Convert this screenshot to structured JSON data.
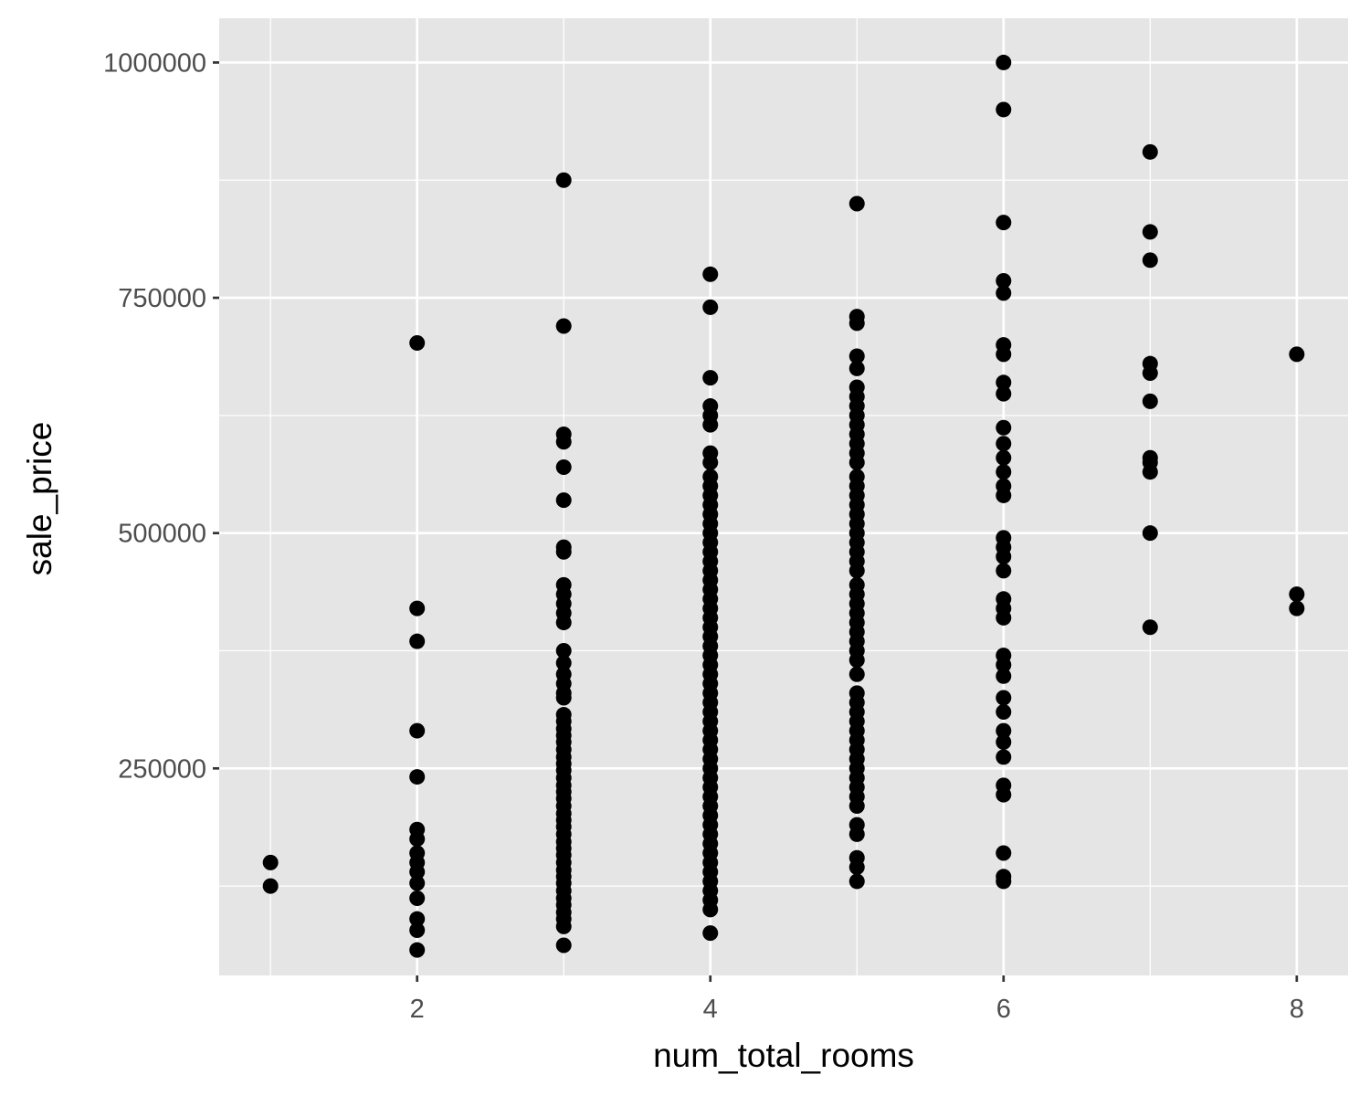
{
  "chart_data": {
    "type": "scatter",
    "xlabel": "num_total_rooms",
    "ylabel": "sale_price",
    "xlim": [
      0.65,
      8.35
    ],
    "ylim": [
      30000,
      1047000
    ],
    "x_ticks": [
      2,
      4,
      6,
      8
    ],
    "x_tick_labels": [
      "2",
      "4",
      "6",
      "8"
    ],
    "y_ticks": [
      250000,
      500000,
      750000,
      1000000
    ],
    "y_tick_labels": [
      "250000",
      "500000",
      "750000",
      "1000000"
    ],
    "grid": true,
    "colors": {
      "panel": "#e5e5e5",
      "grid": "#ffffff",
      "point": "#000000",
      "tick_text": "#4d4d4d"
    },
    "points": [
      [
        1,
        150000
      ],
      [
        1,
        125000
      ],
      [
        2,
        702000
      ],
      [
        2,
        420000
      ],
      [
        2,
        385000
      ],
      [
        2,
        290000
      ],
      [
        2,
        241000
      ],
      [
        2,
        185000
      ],
      [
        2,
        175000
      ],
      [
        2,
        160000
      ],
      [
        2,
        150000
      ],
      [
        2,
        140000
      ],
      [
        2,
        128000
      ],
      [
        2,
        112000
      ],
      [
        2,
        90000
      ],
      [
        2,
        78000
      ],
      [
        2,
        57000
      ],
      [
        3,
        875000
      ],
      [
        3,
        720000
      ],
      [
        3,
        605000
      ],
      [
        3,
        597000
      ],
      [
        3,
        570000
      ],
      [
        3,
        535000
      ],
      [
        3,
        485000
      ],
      [
        3,
        480000
      ],
      [
        3,
        445000
      ],
      [
        3,
        435000
      ],
      [
        3,
        425000
      ],
      [
        3,
        415000
      ],
      [
        3,
        405000
      ],
      [
        3,
        375000
      ],
      [
        3,
        362000
      ],
      [
        3,
        350000
      ],
      [
        3,
        340000
      ],
      [
        3,
        330000
      ],
      [
        3,
        325000
      ],
      [
        3,
        307000
      ],
      [
        3,
        300000
      ],
      [
        3,
        292000
      ],
      [
        3,
        285000
      ],
      [
        3,
        278000
      ],
      [
        3,
        270000
      ],
      [
        3,
        262000
      ],
      [
        3,
        255000
      ],
      [
        3,
        248000
      ],
      [
        3,
        240000
      ],
      [
        3,
        232000
      ],
      [
        3,
        225000
      ],
      [
        3,
        218000
      ],
      [
        3,
        210000
      ],
      [
        3,
        202000
      ],
      [
        3,
        195000
      ],
      [
        3,
        188000
      ],
      [
        3,
        180000
      ],
      [
        3,
        172000
      ],
      [
        3,
        165000
      ],
      [
        3,
        158000
      ],
      [
        3,
        150000
      ],
      [
        3,
        142000
      ],
      [
        3,
        135000
      ],
      [
        3,
        128000
      ],
      [
        3,
        120000
      ],
      [
        3,
        112000
      ],
      [
        3,
        105000
      ],
      [
        3,
        97000
      ],
      [
        3,
        90000
      ],
      [
        3,
        82000
      ],
      [
        3,
        62000
      ],
      [
        4,
        775000
      ],
      [
        4,
        740000
      ],
      [
        4,
        665000
      ],
      [
        4,
        635000
      ],
      [
        4,
        625000
      ],
      [
        4,
        615000
      ],
      [
        4,
        585000
      ],
      [
        4,
        575000
      ],
      [
        4,
        560000
      ],
      [
        4,
        550000
      ],
      [
        4,
        540000
      ],
      [
        4,
        530000
      ],
      [
        4,
        520000
      ],
      [
        4,
        510000
      ],
      [
        4,
        500000
      ],
      [
        4,
        490000
      ],
      [
        4,
        480000
      ],
      [
        4,
        470000
      ],
      [
        4,
        460000
      ],
      [
        4,
        450000
      ],
      [
        4,
        440000
      ],
      [
        4,
        430000
      ],
      [
        4,
        420000
      ],
      [
        4,
        410000
      ],
      [
        4,
        400000
      ],
      [
        4,
        390000
      ],
      [
        4,
        380000
      ],
      [
        4,
        370000
      ],
      [
        4,
        360000
      ],
      [
        4,
        350000
      ],
      [
        4,
        340000
      ],
      [
        4,
        330000
      ],
      [
        4,
        320000
      ],
      [
        4,
        310000
      ],
      [
        4,
        300000
      ],
      [
        4,
        290000
      ],
      [
        4,
        280000
      ],
      [
        4,
        270000
      ],
      [
        4,
        260000
      ],
      [
        4,
        250000
      ],
      [
        4,
        240000
      ],
      [
        4,
        230000
      ],
      [
        4,
        220000
      ],
      [
        4,
        210000
      ],
      [
        4,
        200000
      ],
      [
        4,
        190000
      ],
      [
        4,
        180000
      ],
      [
        4,
        170000
      ],
      [
        4,
        160000
      ],
      [
        4,
        150000
      ],
      [
        4,
        140000
      ],
      [
        4,
        130000
      ],
      [
        4,
        120000
      ],
      [
        4,
        110000
      ],
      [
        4,
        100000
      ],
      [
        4,
        75000
      ],
      [
        5,
        850000
      ],
      [
        5,
        730000
      ],
      [
        5,
        723000
      ],
      [
        5,
        688000
      ],
      [
        5,
        675000
      ],
      [
        5,
        655000
      ],
      [
        5,
        645000
      ],
      [
        5,
        635000
      ],
      [
        5,
        625000
      ],
      [
        5,
        615000
      ],
      [
        5,
        605000
      ],
      [
        5,
        595000
      ],
      [
        5,
        585000
      ],
      [
        5,
        575000
      ],
      [
        5,
        560000
      ],
      [
        5,
        550000
      ],
      [
        5,
        540000
      ],
      [
        5,
        530000
      ],
      [
        5,
        520000
      ],
      [
        5,
        510000
      ],
      [
        5,
        500000
      ],
      [
        5,
        490000
      ],
      [
        5,
        480000
      ],
      [
        5,
        470000
      ],
      [
        5,
        460000
      ],
      [
        5,
        445000
      ],
      [
        5,
        435000
      ],
      [
        5,
        425000
      ],
      [
        5,
        415000
      ],
      [
        5,
        405000
      ],
      [
        5,
        395000
      ],
      [
        5,
        385000
      ],
      [
        5,
        375000
      ],
      [
        5,
        365000
      ],
      [
        5,
        350000
      ],
      [
        5,
        330000
      ],
      [
        5,
        320000
      ],
      [
        5,
        310000
      ],
      [
        5,
        300000
      ],
      [
        5,
        290000
      ],
      [
        5,
        280000
      ],
      [
        5,
        270000
      ],
      [
        5,
        260000
      ],
      [
        5,
        250000
      ],
      [
        5,
        240000
      ],
      [
        5,
        230000
      ],
      [
        5,
        220000
      ],
      [
        5,
        210000
      ],
      [
        5,
        190000
      ],
      [
        5,
        180000
      ],
      [
        5,
        155000
      ],
      [
        5,
        145000
      ],
      [
        5,
        130000
      ],
      [
        6,
        1000000
      ],
      [
        6,
        950000
      ],
      [
        6,
        830000
      ],
      [
        6,
        768000
      ],
      [
        6,
        755000
      ],
      [
        6,
        700000
      ],
      [
        6,
        690000
      ],
      [
        6,
        660000
      ],
      [
        6,
        648000
      ],
      [
        6,
        612000
      ],
      [
        6,
        595000
      ],
      [
        6,
        580000
      ],
      [
        6,
        565000
      ],
      [
        6,
        550000
      ],
      [
        6,
        540000
      ],
      [
        6,
        495000
      ],
      [
        6,
        485000
      ],
      [
        6,
        475000
      ],
      [
        6,
        460000
      ],
      [
        6,
        430000
      ],
      [
        6,
        420000
      ],
      [
        6,
        410000
      ],
      [
        6,
        370000
      ],
      [
        6,
        360000
      ],
      [
        6,
        348000
      ],
      [
        6,
        325000
      ],
      [
        6,
        310000
      ],
      [
        6,
        290000
      ],
      [
        6,
        278000
      ],
      [
        6,
        262000
      ],
      [
        6,
        232000
      ],
      [
        6,
        222000
      ],
      [
        6,
        160000
      ],
      [
        6,
        135000
      ],
      [
        6,
        130000
      ],
      [
        7,
        905000
      ],
      [
        7,
        820000
      ],
      [
        7,
        790000
      ],
      [
        7,
        680000
      ],
      [
        7,
        670000
      ],
      [
        7,
        640000
      ],
      [
        7,
        580000
      ],
      [
        7,
        575000
      ],
      [
        7,
        565000
      ],
      [
        7,
        500000
      ],
      [
        7,
        400000
      ],
      [
        8,
        690000
      ],
      [
        8,
        435000
      ],
      [
        8,
        420000
      ]
    ]
  }
}
